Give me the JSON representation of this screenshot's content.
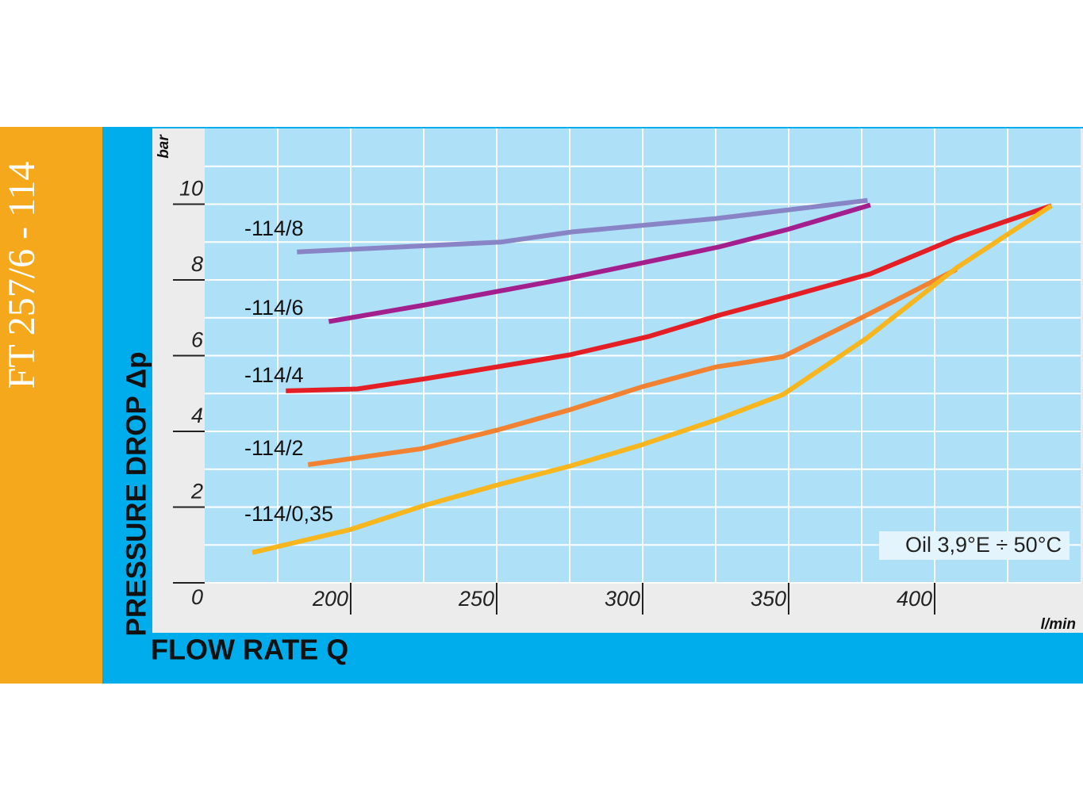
{
  "chart_data": {
    "type": "line",
    "side_title": "FT 257/6 - 114",
    "y_label": "PRESSURE DROP Δp",
    "y_unit": "bar",
    "x_label": "FLOW RATE Q",
    "x_unit": "l/min",
    "annotation": "Oil 3,9°E ÷ 50°C",
    "xlim": [
      150,
      450
    ],
    "xticks": [
      200,
      250,
      300,
      350,
      400
    ],
    "xminor": [
      175,
      225,
      275,
      325,
      375,
      425
    ],
    "ylim": [
      0,
      12
    ],
    "yticks": [
      0,
      2,
      4,
      6,
      8,
      10
    ],
    "yminor": [
      1,
      3,
      5,
      7,
      9,
      11
    ],
    "grid": true,
    "series": [
      {
        "name": "-114/8",
        "color": "#8884c6",
        "x": [
          181.6,
          251.4,
          276,
          325,
          377
        ],
        "values": [
          8.74,
          9.0,
          9.27,
          9.62,
          10.1
        ]
      },
      {
        "name": "-114/6",
        "color": "#a41f8e",
        "x": [
          192.5,
          225.5,
          275,
          326,
          349.5,
          378
        ],
        "values": [
          6.9,
          7.34,
          8.05,
          8.87,
          9.33,
          9.98
        ]
      },
      {
        "name": "-114/4",
        "color": "#e31e25",
        "x": [
          177.8,
          202.3,
          225.5,
          275,
          301.8,
          326.3,
          349.5,
          378,
          406.7,
          440
        ],
        "values": [
          5.07,
          5.12,
          5.39,
          6.02,
          6.5,
          7.07,
          7.55,
          8.16,
          9.08,
          9.96
        ]
      },
      {
        "name": "-114/2",
        "color": "#f08232",
        "x": [
          185.4,
          224,
          250,
          275,
          299.9,
          325,
          348,
          376.7,
          407.5
        ],
        "values": [
          3.12,
          3.54,
          4.03,
          4.57,
          5.18,
          5.7,
          5.97,
          7.07,
          8.28
        ]
      },
      {
        "name": "-114/0,35",
        "color": "#f7b51e",
        "x": [
          166.3,
          199.6,
          225.5,
          250,
          275,
          299.9,
          325,
          348,
          376.7,
          407.5,
          440
        ],
        "values": [
          0.8,
          1.4,
          2.05,
          2.58,
          3.08,
          3.65,
          4.3,
          4.97,
          6.46,
          8.32,
          9.96
        ]
      }
    ]
  }
}
